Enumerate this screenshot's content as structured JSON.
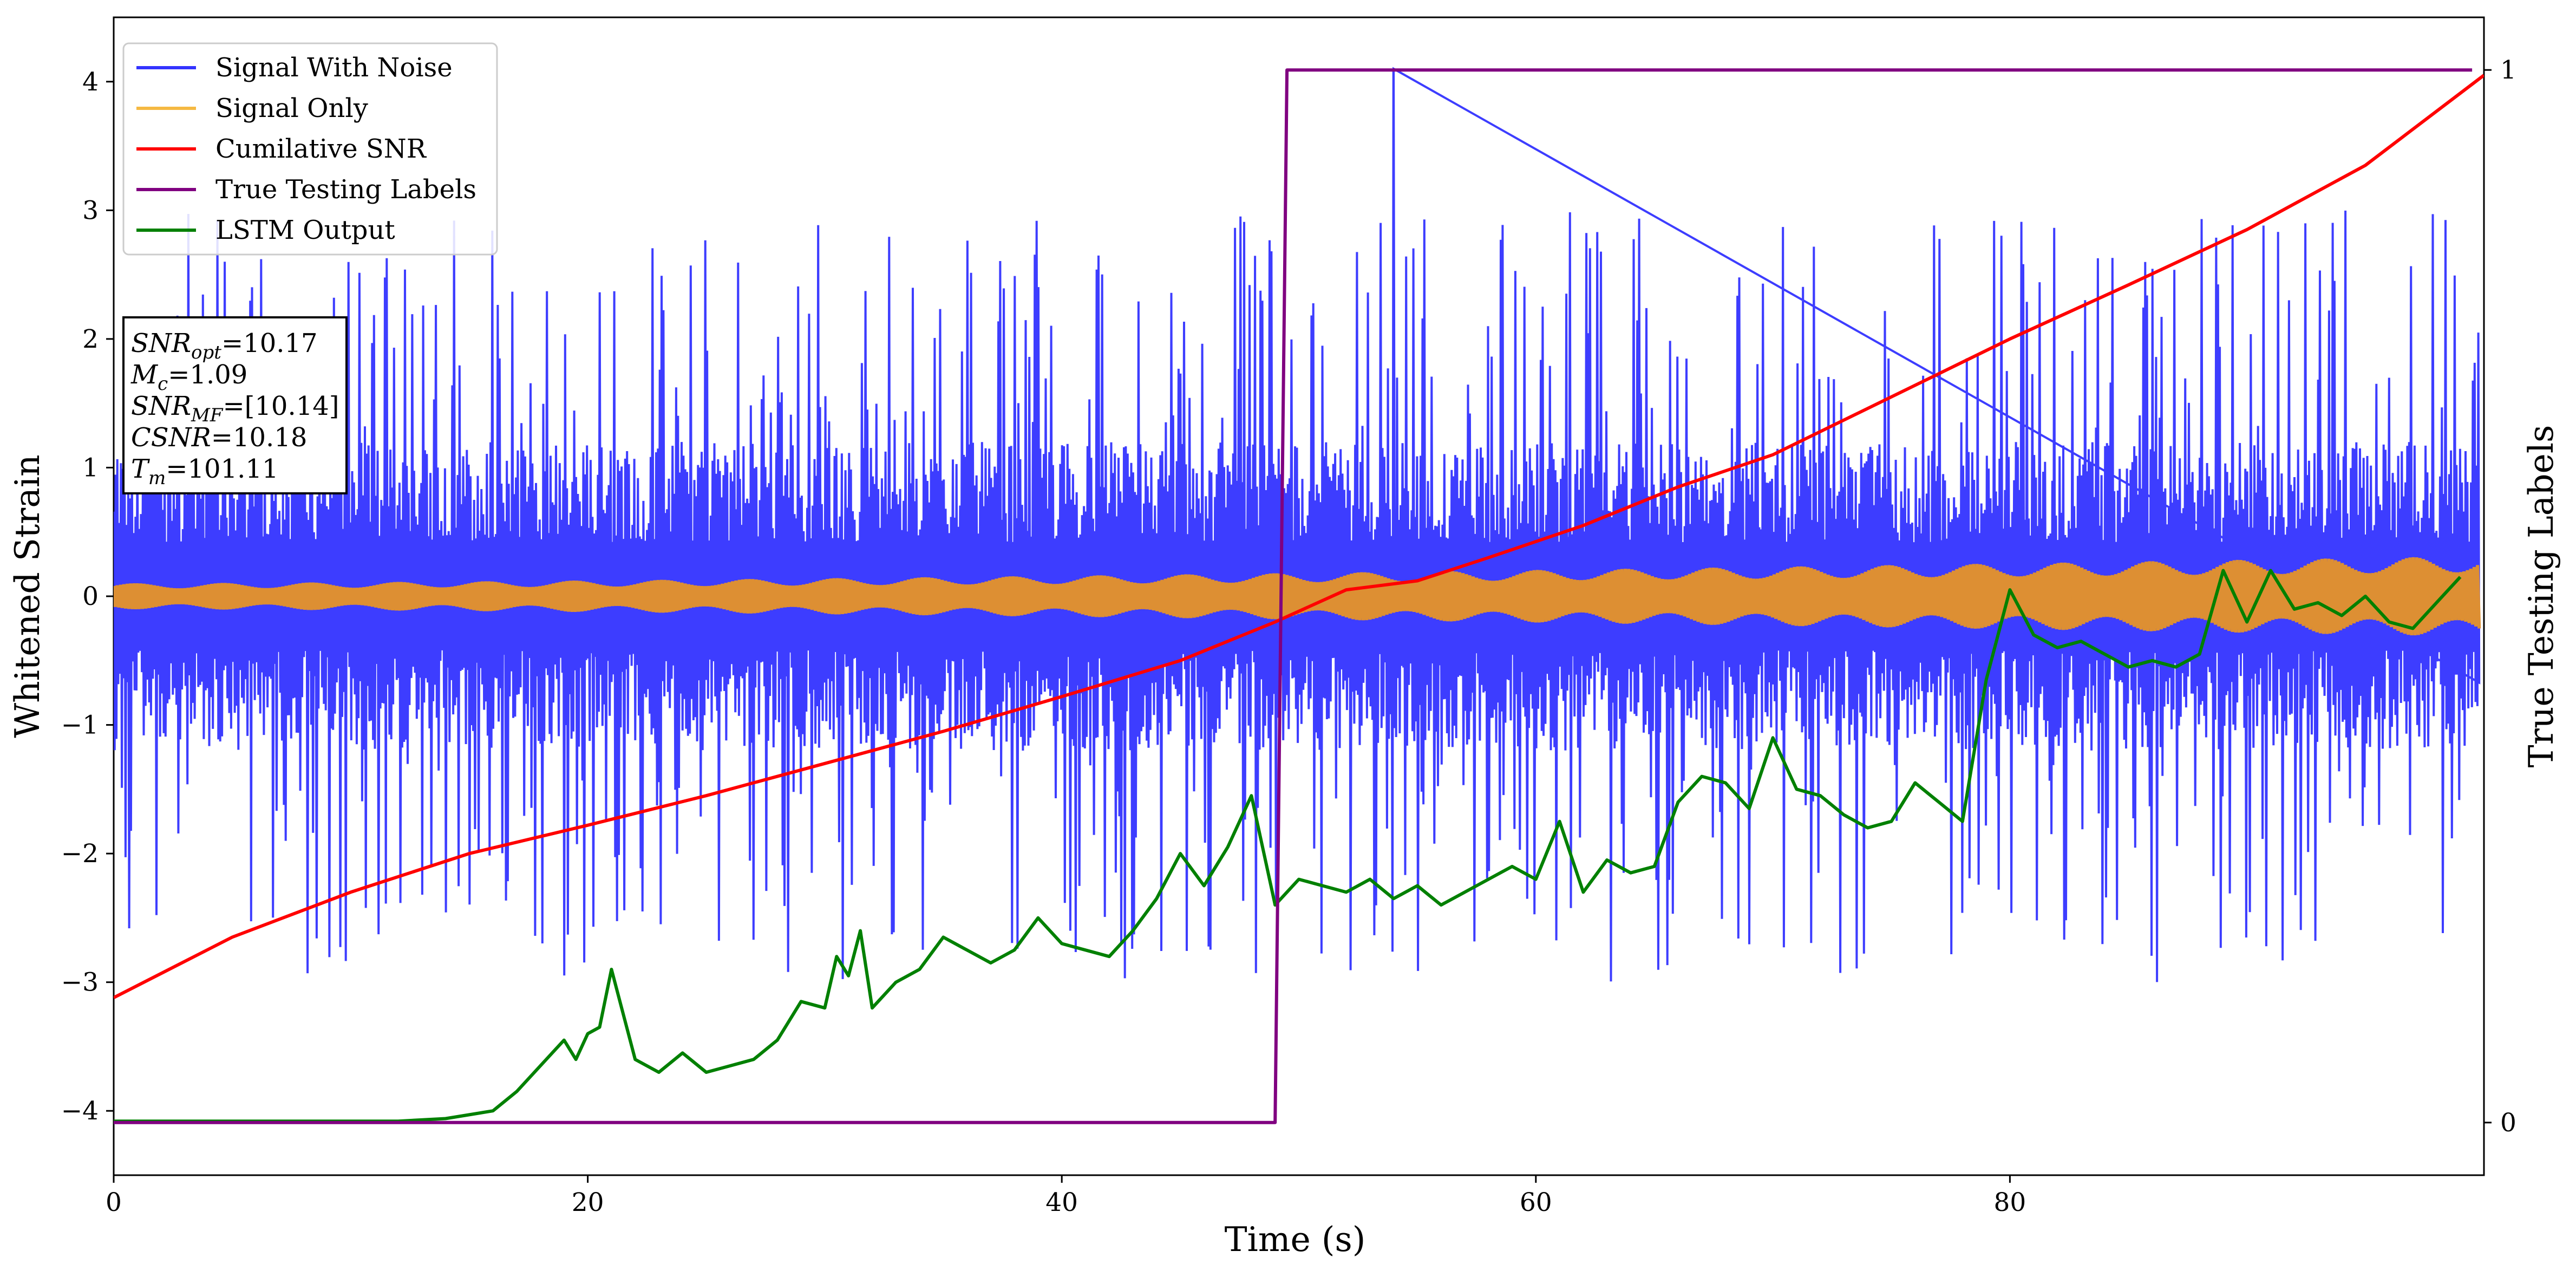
{
  "chart_data": {
    "type": "line",
    "xlabel": "Time (s)",
    "ylabel_left": "Whitened Strain",
    "ylabel_right": "True Testing Labels",
    "xlim": [
      0,
      100
    ],
    "ylim_left": [
      -4.5,
      4.5
    ],
    "ylim_right": [
      -0.05,
      1.05
    ],
    "x_ticks": [
      0,
      20,
      40,
      60,
      80
    ],
    "x_tick_labels": [
      "0",
      "20",
      "40",
      "60",
      "80"
    ],
    "y_left_ticks": [
      -4,
      -3,
      -2,
      -1,
      0,
      1,
      2,
      3,
      4
    ],
    "y_left_tick_labels": [
      "−4",
      "−3",
      "−2",
      "−1",
      "0",
      "1",
      "2",
      "3",
      "4"
    ],
    "y_right_ticks": [
      0,
      1
    ],
    "y_right_tick_labels": [
      "0",
      "1"
    ],
    "grid": false,
    "legend_position": "upper-left",
    "legend": [
      {
        "label": "Signal With Noise",
        "color": "#3333ff"
      },
      {
        "label": "Signal Only",
        "color": "#f5b942"
      },
      {
        "label": "Cumilative SNR",
        "color": "#ff0000"
      },
      {
        "label": "True Testing Labels",
        "color": "#800080"
      },
      {
        "label": "LSTM Output",
        "color": "#008000"
      }
    ],
    "annotation_lines": [
      {
        "label": "SNR",
        "sub": "opt",
        "value": "=10.17"
      },
      {
        "label": "M",
        "sub": "c",
        "value": "=1.09"
      },
      {
        "label": "SNR",
        "sub": "MF",
        "value": "=[10.14]"
      },
      {
        "label": "CSNR",
        "sub": "",
        "value": "=10.18"
      },
      {
        "label": "T",
        "sub": "m",
        "value": "=101.11"
      }
    ],
    "series": [
      {
        "name": "Signal With Noise",
        "axis": "left",
        "color": "#3333ff",
        "kind": "noise-band",
        "baseline_envelope": 1.2,
        "spike_max": 3.0,
        "peak": {
          "x": 54.0,
          "y": 4.1
        }
      },
      {
        "name": "Signal Only",
        "axis": "left",
        "color": "#dd8f33",
        "kind": "chirp-band",
        "amplitude_start": 0.08,
        "amplitude_end": 0.25
      },
      {
        "name": "Cumilative SNR",
        "axis": "left",
        "color": "#ff0000",
        "x": [
          0,
          5,
          10,
          15,
          20,
          25,
          30,
          35,
          40,
          45,
          49,
          52,
          55,
          58,
          62,
          66,
          70,
          75,
          80,
          85,
          90,
          95,
          100
        ],
        "y": [
          -3.12,
          -2.65,
          -2.3,
          -2.0,
          -1.78,
          -1.55,
          -1.3,
          -1.05,
          -0.78,
          -0.5,
          -0.2,
          0.05,
          0.12,
          0.3,
          0.55,
          0.85,
          1.1,
          1.55,
          2.0,
          2.42,
          2.85,
          3.35,
          4.05
        ]
      },
      {
        "name": "True Testing Labels",
        "axis": "right",
        "color": "#800080",
        "x": [
          0,
          49.0,
          49.5,
          99.5
        ],
        "y": [
          0,
          0,
          1,
          1
        ]
      },
      {
        "name": "LSTM Output",
        "axis": "left",
        "color": "#008000",
        "x": [
          0,
          12,
          14,
          16,
          17,
          18,
          19,
          19.5,
          20,
          20.5,
          21,
          22,
          23,
          24,
          25,
          26,
          27,
          28,
          29,
          30,
          30.5,
          31,
          31.5,
          32,
          33,
          34,
          35,
          36,
          37,
          38,
          39,
          40,
          41,
          42,
          43,
          44,
          45,
          46,
          47,
          48,
          49,
          50,
          51,
          52,
          53,
          54,
          55,
          56,
          57,
          58,
          59,
          60,
          61,
          62,
          63,
          64,
          65,
          66,
          67,
          68,
          69,
          70,
          71,
          72,
          73,
          74,
          75,
          76,
          77,
          78,
          79,
          80,
          81,
          82,
          83,
          84,
          85,
          86,
          87,
          88,
          89,
          90,
          91,
          92,
          93,
          94,
          95,
          96,
          97,
          98,
          99
        ],
        "y": [
          -4.08,
          -4.08,
          -4.06,
          -4.0,
          -3.85,
          -3.65,
          -3.45,
          -3.6,
          -3.4,
          -3.35,
          -2.9,
          -3.6,
          -3.7,
          -3.55,
          -3.7,
          -3.65,
          -3.6,
          -3.45,
          -3.15,
          -3.2,
          -2.8,
          -2.95,
          -2.6,
          -3.2,
          -3.0,
          -2.9,
          -2.65,
          -2.75,
          -2.85,
          -2.75,
          -2.5,
          -2.7,
          -2.75,
          -2.8,
          -2.6,
          -2.35,
          -2.0,
          -2.25,
          -1.95,
          -1.55,
          -2.4,
          -2.2,
          -2.25,
          -2.3,
          -2.2,
          -2.35,
          -2.25,
          -2.4,
          -2.3,
          -2.2,
          -2.1,
          -2.2,
          -1.75,
          -2.3,
          -2.05,
          -2.15,
          -2.1,
          -1.6,
          -1.4,
          -1.45,
          -1.65,
          -1.1,
          -1.5,
          -1.55,
          -1.7,
          -1.8,
          -1.75,
          -1.45,
          -1.6,
          -1.75,
          -0.65,
          0.05,
          -0.3,
          -0.4,
          -0.35,
          -0.45,
          -0.55,
          -0.5,
          -0.55,
          -0.45,
          0.2,
          -0.2,
          0.2,
          -0.1,
          -0.05,
          -0.15,
          0.0,
          -0.2,
          -0.25,
          -0.05,
          0.15
        ]
      }
    ]
  }
}
